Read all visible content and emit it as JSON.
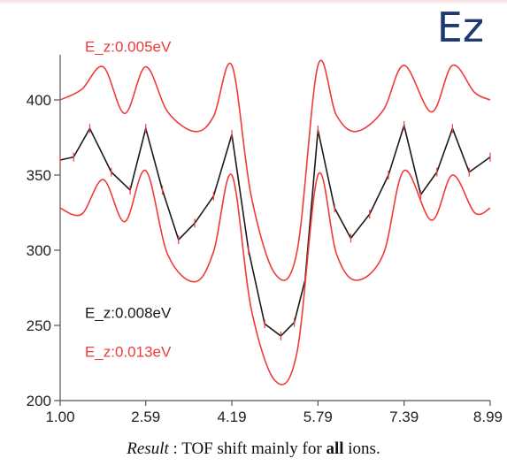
{
  "chart_data": {
    "type": "line",
    "title": "Ez",
    "caption": {
      "prefix": "Result",
      "middle": " : TOF shift mainly for ",
      "bold": "all",
      "suffix": " ions."
    },
    "xlim": [
      1.0,
      8.99
    ],
    "ylim": [
      200,
      430
    ],
    "x_ticks": [
      "1.00",
      "2.59",
      "4.19",
      "5.79",
      "7.39",
      "8.99"
    ],
    "y_ticks": [
      200,
      250,
      300,
      350,
      400
    ],
    "colors": {
      "red": "#ee3b3b",
      "black": "#1a1a1a",
      "axis": "#555555"
    },
    "series": [
      {
        "name": "E_z:0.005eV",
        "color": "#ee3b3b",
        "x": [
          1.0,
          1.4,
          1.8,
          2.2,
          2.59,
          3.0,
          3.5,
          3.85,
          4.19,
          4.55,
          5.0,
          5.4,
          5.79,
          6.13,
          6.5,
          7.0,
          7.39,
          7.9,
          8.29,
          8.7,
          8.99
        ],
        "y": [
          400,
          407,
          422,
          391,
          422,
          392,
          379,
          389,
          423,
          336,
          284,
          299,
          423,
          390,
          379,
          393,
          423,
          392,
          423,
          405,
          400
        ]
      },
      {
        "name": "E_z:0.008eV",
        "color": "#1a1a1a",
        "x": [
          1.0,
          1.25,
          1.55,
          1.95,
          2.3,
          2.59,
          2.9,
          3.2,
          3.5,
          3.85,
          4.19,
          4.5,
          4.8,
          5.1,
          5.35,
          5.55,
          5.79,
          6.1,
          6.4,
          6.75,
          7.1,
          7.39,
          7.7,
          8.0,
          8.29,
          8.6,
          8.99
        ],
        "y": [
          360,
          362,
          381,
          352,
          340,
          381,
          340,
          307,
          318,
          336,
          377,
          300,
          251,
          243,
          252,
          280,
          380,
          328,
          308,
          324,
          350,
          383,
          337,
          352,
          381,
          352,
          362
        ]
      },
      {
        "name": "E_z:0.013eV",
        "color": "#ee3b3b",
        "x": [
          1.0,
          1.4,
          1.8,
          2.2,
          2.59,
          3.0,
          3.5,
          3.85,
          4.19,
          4.55,
          5.0,
          5.4,
          5.79,
          6.13,
          6.5,
          7.0,
          7.39,
          7.9,
          8.29,
          8.7,
          8.99
        ],
        "y": [
          328,
          324,
          347,
          319,
          353,
          297,
          279,
          299,
          350,
          261,
          213,
          232,
          350,
          298,
          280,
          297,
          353,
          320,
          350,
          325,
          328
        ]
      }
    ],
    "annotations": [
      {
        "text": "E_z:0.005eV",
        "color": "#ee3b3b",
        "x": 1.46,
        "y": 432
      },
      {
        "text": "E_z:0.008eV",
        "color": "#1a1a1a",
        "x": 1.46,
        "y": 255
      },
      {
        "text": "E_z:0.013eV",
        "color": "#ee3b3b",
        "x": 1.46,
        "y": 229
      }
    ]
  }
}
